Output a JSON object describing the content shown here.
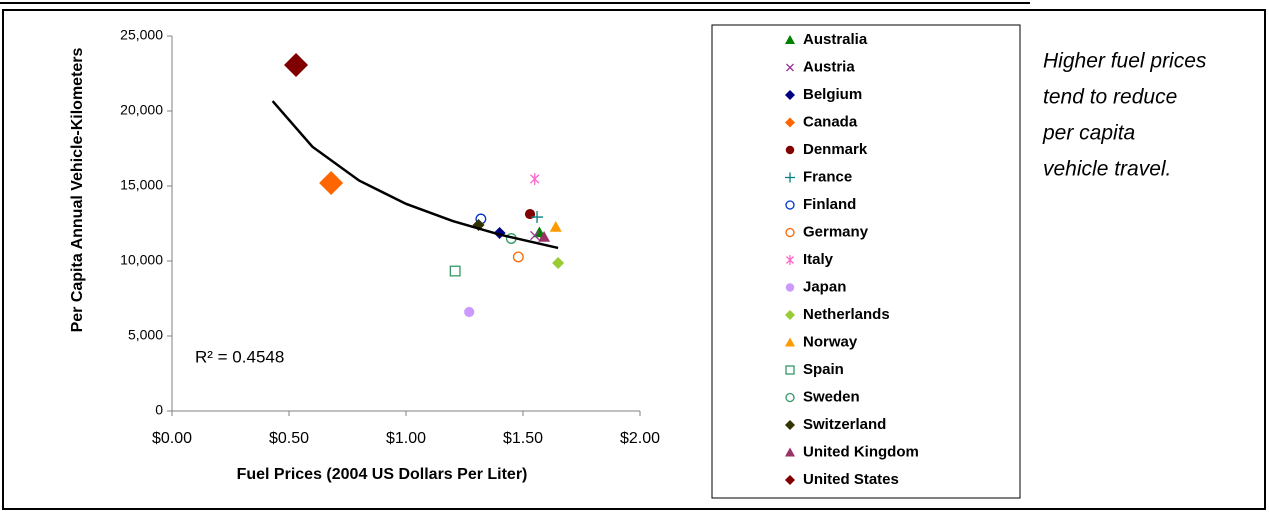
{
  "chart_data": {
    "type": "scatter",
    "x_label": "Fuel Prices (2004 US Dollars Per Liter)",
    "y_label": "Per Capita Annual Vehicle-Kilometers",
    "xlim": [
      0,
      2
    ],
    "ylim": [
      0,
      25000
    ],
    "xticks": [
      {
        "value": 0,
        "label": "$0.00"
      },
      {
        "value": 0.5,
        "label": "$0.50"
      },
      {
        "value": 1,
        "label": "$1.00"
      },
      {
        "value": 1.5,
        "label": "$1.50"
      },
      {
        "value": 2,
        "label": "$2.00"
      }
    ],
    "yticks": [
      0,
      {
        "value": 5000,
        "label": "5,000"
      },
      {
        "value": 10000,
        "label": "10,000"
      },
      {
        "value": 15000,
        "label": "15,000"
      },
      {
        "value": 20000,
        "label": "20,000"
      },
      {
        "value": 25000,
        "label": "25,000"
      }
    ],
    "grid": false,
    "legend": "right",
    "series": [
      {
        "name": "Australia",
        "color": "#008000",
        "marker": "triangle",
        "x": [
          1.57
        ],
        "values": [
          11900
        ]
      },
      {
        "name": "Austria",
        "color": "#993399",
        "marker": "x",
        "x": [
          1.55
        ],
        "values": [
          11700
        ]
      },
      {
        "name": "Belgium",
        "color": "#000080",
        "marker": "diamond",
        "x": [
          1.4
        ],
        "values": [
          11870
        ]
      },
      {
        "name": "Canada",
        "color": "#ff6600",
        "marker": "diamond",
        "size": 2,
        "x": [
          0.68
        ],
        "values": [
          15200
        ]
      },
      {
        "name": "Denmark",
        "color": "#800000",
        "marker": "circle",
        "x": [
          1.53
        ],
        "values": [
          13130
        ]
      },
      {
        "name": "France",
        "color": "#008080",
        "marker": "plus",
        "x": [
          1.56
        ],
        "values": [
          12930
        ]
      },
      {
        "name": "Finland",
        "color": "#0033cc",
        "marker": "circle-open",
        "x": [
          1.32
        ],
        "values": [
          12800
        ]
      },
      {
        "name": "Germany",
        "color": "#ff6600",
        "marker": "circle-open",
        "x": [
          1.48
        ],
        "values": [
          10270
        ]
      },
      {
        "name": "Italy",
        "color": "#ff66cc",
        "marker": "asterisk",
        "x": [
          1.55
        ],
        "values": [
          15470
        ]
      },
      {
        "name": "Japan",
        "color": "#cc99ff",
        "marker": "circle",
        "x": [
          1.27
        ],
        "values": [
          6600
        ]
      },
      {
        "name": "Netherlands",
        "color": "#99cc33",
        "marker": "diamond",
        "x": [
          1.65
        ],
        "values": [
          9870
        ]
      },
      {
        "name": "Norway",
        "color": "#ff9900",
        "marker": "triangle",
        "x": [
          1.64
        ],
        "values": [
          12270
        ]
      },
      {
        "name": "Spain",
        "color": "#339966",
        "marker": "square-open",
        "x": [
          1.21
        ],
        "values": [
          9330
        ]
      },
      {
        "name": "Sweden",
        "color": "#339966",
        "marker": "circle-open",
        "x": [
          1.45
        ],
        "values": [
          11500
        ]
      },
      {
        "name": "Switzerland",
        "color": "#333300",
        "marker": "diamond",
        "x": [
          1.31
        ],
        "values": [
          12400
        ]
      },
      {
        "name": "United Kingdom",
        "color": "#993366",
        "marker": "triangle",
        "x": [
          1.59
        ],
        "values": [
          11600
        ]
      },
      {
        "name": "United States",
        "color": "#800000",
        "marker": "diamond",
        "size": 2,
        "x": [
          0.53
        ],
        "values": [
          23070
        ]
      }
    ],
    "trendline": {
      "color": "#000000",
      "x": [
        0.43,
        0.6,
        0.8,
        1.0,
        1.2,
        1.4,
        1.65
      ],
      "values": [
        20660,
        17620,
        15360,
        13810,
        12660,
        11760,
        10870
      ]
    },
    "r_squared_label": "R² = 0.4548",
    "annotation": [
      "Higher fuel prices",
      "tend to reduce",
      "per capita",
      "vehicle travel."
    ]
  }
}
